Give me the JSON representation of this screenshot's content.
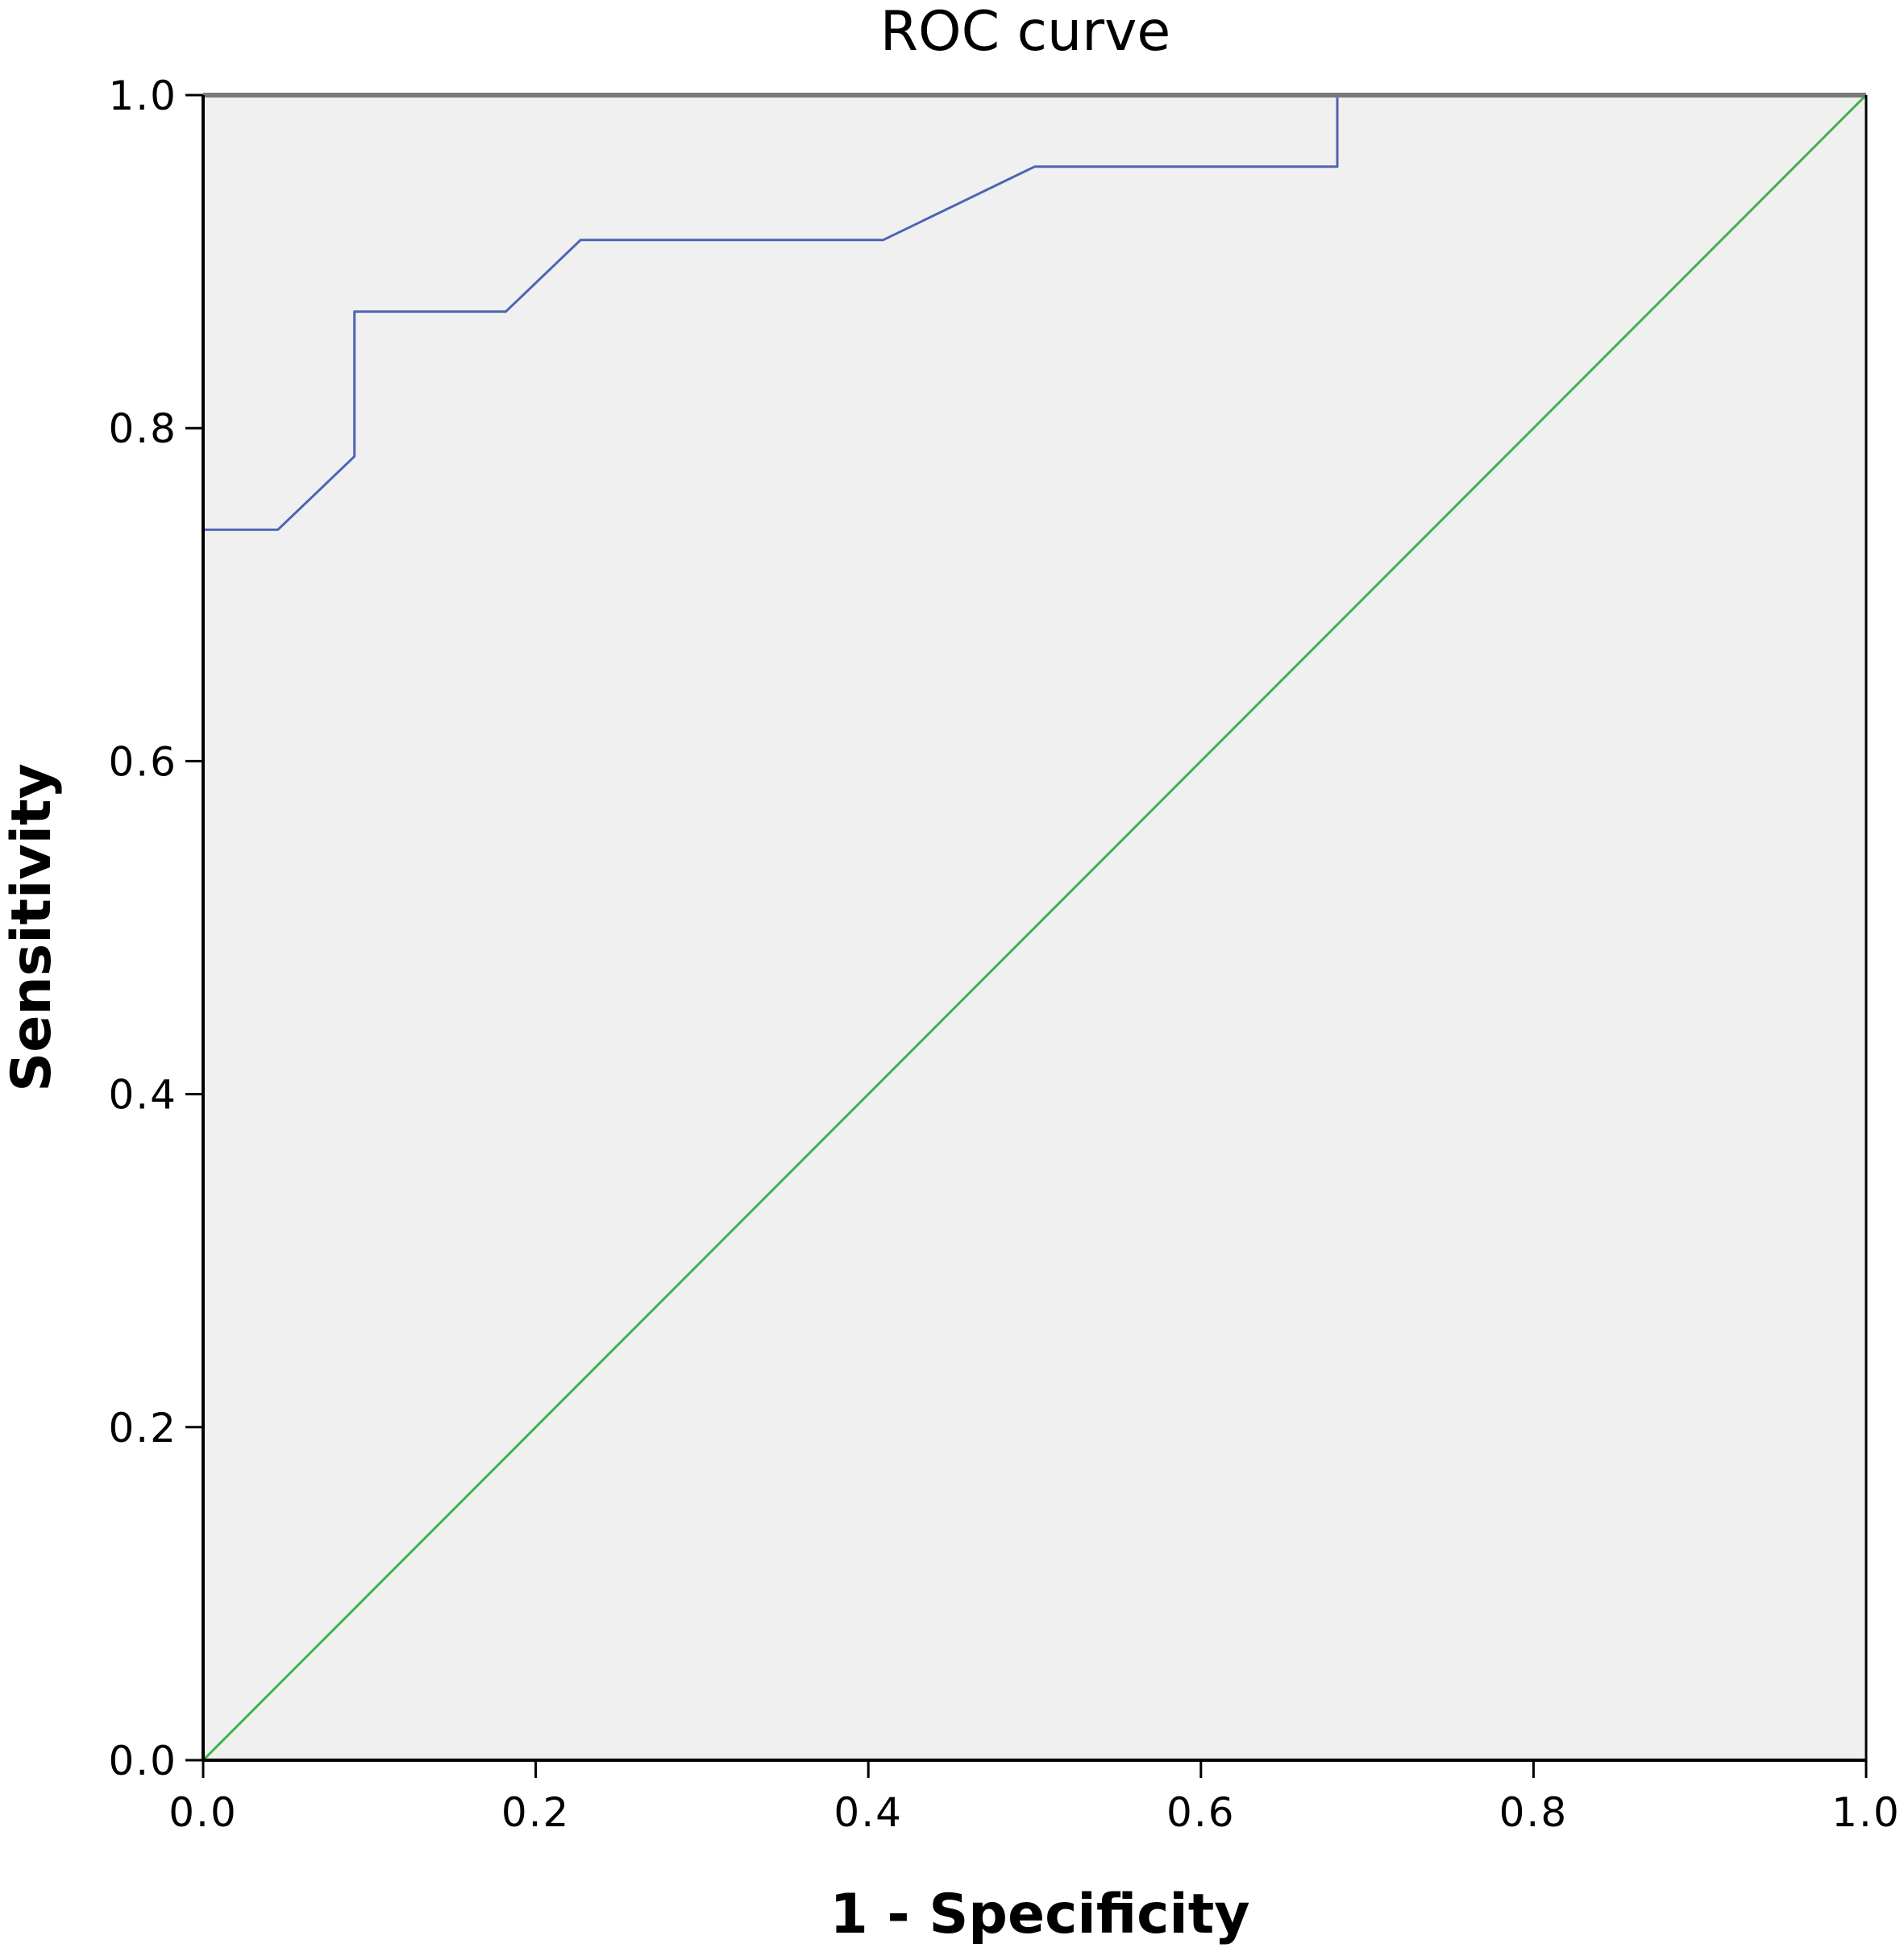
{
  "chart_data": {
    "type": "line",
    "title": "ROC curve",
    "xlabel": "1 - Specificity",
    "ylabel": "Sensitivity",
    "xlim": [
      0.0,
      1.0
    ],
    "ylim": [
      0.0,
      1.0
    ],
    "x_ticks": [
      "0.0",
      "0.2",
      "0.4",
      "0.6",
      "0.8",
      "1.0"
    ],
    "y_ticks": [
      "0.0",
      "0.2",
      "0.4",
      "0.6",
      "0.8",
      "1.0"
    ],
    "grid": false,
    "legend": "none",
    "background_color": "#f0f0f0",
    "series": [
      {
        "color": "#4e64b4",
        "points": [
          [
            0.0,
            0.0
          ],
          [
            0.0,
            0.739
          ],
          [
            0.045,
            0.739
          ],
          [
            0.091,
            0.783
          ],
          [
            0.091,
            0.87
          ],
          [
            0.182,
            0.87
          ],
          [
            0.227,
            0.913
          ],
          [
            0.409,
            0.913
          ],
          [
            0.5,
            0.957
          ],
          [
            0.682,
            0.957
          ],
          [
            0.682,
            1.0
          ],
          [
            1.0,
            1.0
          ]
        ]
      },
      {
        "color": "#3cb44b",
        "points": [
          [
            0.0,
            0.0
          ],
          [
            1.0,
            1.0
          ]
        ]
      }
    ]
  }
}
